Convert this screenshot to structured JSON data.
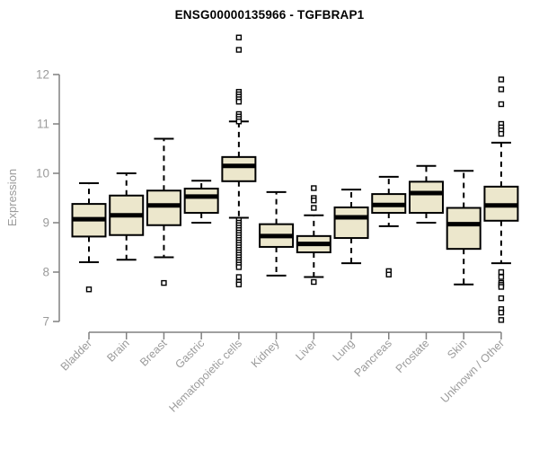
{
  "chart_data": {
    "type": "boxplot",
    "title": "ENSG00000135966 - TGFBRAP1",
    "xlabel": "",
    "ylabel": "Expression",
    "ylim": [
      7,
      12
    ],
    "yticks": [
      7,
      8,
      9,
      10,
      11,
      12
    ],
    "grid": false,
    "legend": "none",
    "x_label_rotation": 45,
    "categories": [
      "Bladder",
      "Brain",
      "Breast",
      "Gastric",
      "Hematopoietic cells",
      "Kidney",
      "Liver",
      "Lung",
      "Pancreas",
      "Prostate",
      "Skin",
      "Unknown / Other"
    ],
    "series": [
      {
        "name": "Bladder",
        "whisker_low": 8.2,
        "q1": 8.72,
        "median": 9.07,
        "q3": 9.38,
        "whisker_high": 9.8,
        "outliers": [
          7.65
        ]
      },
      {
        "name": "Brain",
        "whisker_low": 8.25,
        "q1": 8.75,
        "median": 9.15,
        "q3": 9.55,
        "whisker_high": 10.0,
        "outliers": []
      },
      {
        "name": "Breast",
        "whisker_low": 8.3,
        "q1": 8.95,
        "median": 9.35,
        "q3": 9.65,
        "whisker_high": 10.7,
        "outliers": [
          7.78
        ]
      },
      {
        "name": "Gastric",
        "whisker_low": 9.0,
        "q1": 9.2,
        "median": 9.53,
        "q3": 9.69,
        "whisker_high": 9.85,
        "outliers": []
      },
      {
        "name": "Hematopoietic cells",
        "whisker_low": 9.1,
        "q1": 9.84,
        "median": 10.15,
        "q3": 10.33,
        "whisker_high": 11.05,
        "outliers": [
          12.75,
          12.5,
          11.65,
          11.6,
          11.55,
          11.5,
          11.45,
          11.2,
          11.15,
          11.1,
          11.05,
          9.05,
          9.0,
          8.95,
          8.9,
          8.85,
          8.8,
          8.75,
          8.7,
          8.65,
          8.6,
          8.55,
          8.5,
          8.45,
          8.4,
          8.35,
          8.3,
          8.25,
          8.2,
          8.15,
          8.1,
          7.9,
          7.8,
          7.75
        ]
      },
      {
        "name": "Kidney",
        "whisker_low": 7.93,
        "q1": 8.51,
        "median": 8.73,
        "q3": 8.97,
        "whisker_high": 9.62,
        "outliers": []
      },
      {
        "name": "Liver",
        "whisker_low": 7.9,
        "q1": 8.4,
        "median": 8.57,
        "q3": 8.73,
        "whisker_high": 9.15,
        "outliers": [
          9.7,
          9.5,
          9.45,
          9.3,
          7.8
        ]
      },
      {
        "name": "Lung",
        "whisker_low": 8.18,
        "q1": 8.69,
        "median": 9.11,
        "q3": 9.31,
        "whisker_high": 9.67,
        "outliers": []
      },
      {
        "name": "Pancreas",
        "whisker_low": 8.93,
        "q1": 9.2,
        "median": 9.36,
        "q3": 9.58,
        "whisker_high": 9.93,
        "outliers": [
          8.02,
          7.95
        ]
      },
      {
        "name": "Prostate",
        "whisker_low": 9.0,
        "q1": 9.2,
        "median": 9.6,
        "q3": 9.83,
        "whisker_high": 10.15,
        "outliers": []
      },
      {
        "name": "Skin",
        "whisker_low": 7.75,
        "q1": 8.47,
        "median": 8.97,
        "q3": 9.3,
        "whisker_high": 10.05,
        "outliers": []
      },
      {
        "name": "Unknown / Other",
        "whisker_low": 8.18,
        "q1": 9.04,
        "median": 9.35,
        "q3": 9.73,
        "whisker_high": 10.62,
        "outliers": [
          11.9,
          11.7,
          11.4,
          11.0,
          10.93,
          10.87,
          10.8,
          8.0,
          7.9,
          7.78,
          7.74,
          7.7,
          7.47,
          7.25,
          7.18,
          7.03
        ]
      }
    ],
    "colors": {
      "box_fill": "#ECE7CC",
      "box_border": "#000000",
      "median": "#000000",
      "whisker": "#000000",
      "outlier_fill": "#ffffff",
      "axis_line": "#808080",
      "tick_text": "#9b9b9b",
      "title_text": "#000000",
      "background": "#ffffff"
    }
  }
}
